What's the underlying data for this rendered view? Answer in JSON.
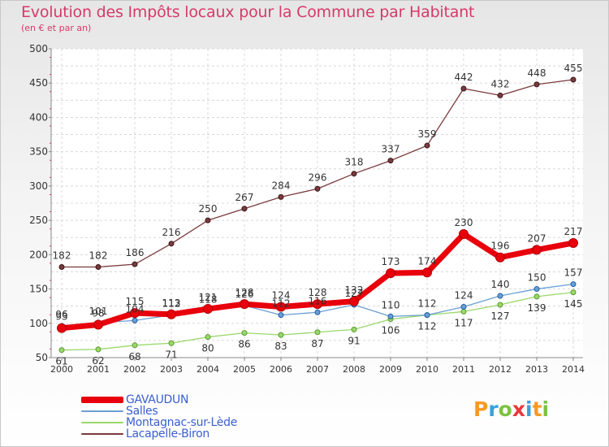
{
  "chart_data": {
    "type": "line",
    "title": "Evolution des Impôts locaux pour la Commune par Habitant",
    "subtitle": "(en € et par an)",
    "xlabel": "",
    "ylabel": "",
    "ylim": [
      50,
      500
    ],
    "yticks": [
      "50",
      "100",
      "150",
      "200",
      "250",
      "300",
      "350",
      "400",
      "450",
      "500"
    ],
    "categories": [
      "2000",
      "2001",
      "2002",
      "2003",
      "2004",
      "2005",
      "2006",
      "2007",
      "2008",
      "2009",
      "2010",
      "2011",
      "2012",
      "2013",
      "2014"
    ],
    "series": [
      {
        "name": "GAVAUDUN",
        "color": "#e8000b",
        "values": [
          93,
          98,
          115,
          113,
          121,
          128,
          124,
          128,
          132,
          173,
          174,
          230,
          196,
          207,
          217
        ]
      },
      {
        "name": "Salles",
        "color": "#6a9fd4",
        "values": [
          96,
          101,
          104,
          112,
          118,
          126,
          112,
          116,
          127,
          110,
          112,
          124,
          140,
          150,
          157
        ]
      },
      {
        "name": "Montagnac-sur-Lède",
        "color": "#9ad86a",
        "values": [
          61,
          62,
          68,
          71,
          80,
          86,
          83,
          87,
          91,
          106,
          112,
          117,
          127,
          139,
          145
        ]
      },
      {
        "name": "Lacapelle-Biron",
        "color": "#7a3a3e",
        "values": [
          182,
          182,
          186,
          216,
          250,
          267,
          284,
          296,
          318,
          337,
          359,
          442,
          432,
          448,
          455
        ]
      }
    ],
    "legend_position": "bottom-left",
    "grid": true
  },
  "logo": {
    "letters": [
      "P",
      "r",
      "o",
      "x",
      "i",
      "t",
      "i"
    ],
    "colors": [
      "#f59a23",
      "#3aa0d8",
      "#7cc242",
      "#e8383d",
      "#3aa0d8",
      "#f59a23",
      "#7cc242"
    ]
  }
}
